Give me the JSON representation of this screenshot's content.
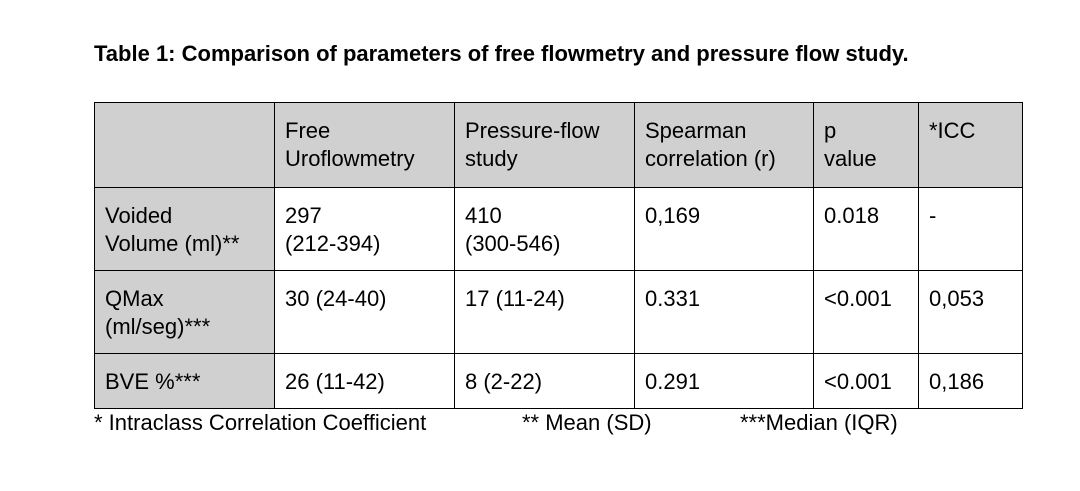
{
  "title": "Table 1: Comparison of parameters of free flowmetry and pressure flow study.",
  "table": {
    "headers": [
      [
        ""
      ],
      [
        "Free",
        "Uroflowmetry"
      ],
      [
        "Pressure-flow",
        "study"
      ],
      [
        "Spearman",
        "correlation (r)"
      ],
      [
        "p",
        "value"
      ],
      [
        "*ICC"
      ]
    ],
    "rows": [
      {
        "label": [
          "Voided",
          "Volume (ml)**"
        ],
        "cells": [
          [
            "297",
            "(212-394)"
          ],
          [
            "410",
            "(300-546)"
          ],
          [
            "0,169"
          ],
          [
            "0.018"
          ],
          [
            "-"
          ]
        ]
      },
      {
        "label": [
          "QMax",
          "(ml/seg)***"
        ],
        "cells": [
          [
            "30 (24-40)"
          ],
          [
            "17 (11-24)"
          ],
          [
            "0.331"
          ],
          [
            "<0.001"
          ],
          [
            "0,053"
          ]
        ]
      },
      {
        "label": [
          "BVE %***"
        ],
        "cells": [
          [
            "26 (11-42)"
          ],
          [
            "8 (2-22)"
          ],
          [
            "0.291"
          ],
          [
            "<0.001"
          ],
          [
            "0,186"
          ]
        ]
      }
    ]
  },
  "footnotes": {
    "icc": "* Intraclass Correlation Coefficient",
    "mean": "** Mean (SD)",
    "median": "***Median (IQR)"
  }
}
